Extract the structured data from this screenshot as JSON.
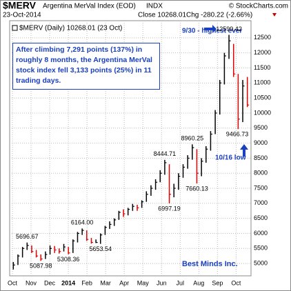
{
  "header": {
    "symbol": "$MERV",
    "name": "Argentina MerVal Index (EOD)",
    "exchange": "INDX",
    "date": "23-Oct-2014",
    "close": "Close 10268.01",
    "change": "Chg -280.22 (-2.66%)",
    "credit": "© StockCharts.com",
    "legend": "$MERV (Daily) 10268.01 (23 Oct)"
  },
  "chart_data": {
    "type": "ohlc",
    "categories": [
      "Oct",
      "Nov",
      "Dec",
      "2014",
      "Feb",
      "Mar",
      "Apr",
      "May",
      "Jun",
      "Jul",
      "Aug",
      "Sep",
      "Oct"
    ],
    "high": [
      5050,
      5300,
      5550,
      5696.67,
      5600,
      5450,
      5300,
      5400,
      5600,
      5580,
      5500,
      5650,
      5550,
      5800,
      6050,
      6164.0,
      6100,
      5850,
      5800,
      6000,
      6250,
      6400,
      6500,
      6750,
      6800,
      6850,
      6980,
      6950,
      7100,
      7400,
      7600,
      7800,
      8100,
      8444.71,
      8300,
      7650,
      8000,
      8300,
      8600,
      8960.25,
      8800,
      8500,
      8900,
      9400,
      10100,
      11100,
      12000,
      12599.42,
      12300,
      11300,
      11100,
      11200
    ],
    "low": [
      4800,
      4950,
      5200,
      5450,
      5350,
      5200,
      5087.98,
      5150,
      5300,
      5350,
      5330,
      5400,
      5308.36,
      5350,
      5700,
      5950,
      5750,
      5660,
      5680,
      5653.54,
      5950,
      6150,
      6250,
      6450,
      6550,
      6600,
      6750,
      6750,
      6850,
      7050,
      7250,
      7450,
      7700,
      7950,
      6997.19,
      7200,
      7450,
      7850,
      8150,
      8450,
      7660.13,
      7900,
      8350,
      8750,
      9300,
      9950,
      10950,
      11800,
      11200,
      9466.73,
      9700,
      10200
    ],
    "close": [
      4950,
      5250,
      5500,
      5600,
      5400,
      5250,
      5150,
      5300,
      5500,
      5450,
      5400,
      5550,
      5350,
      5750,
      6000,
      6100,
      5800,
      5700,
      5700,
      5950,
      6200,
      6300,
      6450,
      6700,
      6650,
      6800,
      6900,
      6850,
      7050,
      7300,
      7500,
      7700,
      8000,
      8350,
      7300,
      7500,
      7900,
      8200,
      8500,
      8850,
      8000,
      8400,
      8800,
      9300,
      10000,
      11000,
      11900,
      12400,
      11300,
      9800,
      10900,
      10268.01
    ],
    "up_color": "#000000",
    "down_color": "#e00000",
    "ylim": [
      4590,
      13070
    ],
    "yticks": [
      5000,
      5500,
      6000,
      6500,
      7000,
      7500,
      8000,
      8500,
      9000,
      9500,
      10000,
      10500,
      11000,
      11500,
      12000,
      12500
    ],
    "grid": true,
    "annotations": [
      {
        "value": 5696.67,
        "label": "5696.67"
      },
      {
        "value": 5087.98,
        "label": "5087.98"
      },
      {
        "value": 5308.36,
        "label": "5308.36"
      },
      {
        "value": 6164,
        "label": "6164.00"
      },
      {
        "value": 5653.54,
        "label": "5653.54"
      },
      {
        "value": 8444.71,
        "label": "8444.71"
      },
      {
        "value": 6997.19,
        "label": "6997.19"
      },
      {
        "value": 8960.25,
        "label": "8960.25"
      },
      {
        "value": 7660.13,
        "label": "7660.13"
      },
      {
        "value": 12599.42,
        "label": "12599.42"
      },
      {
        "value": 9466.73,
        "label": "9466.73"
      }
    ],
    "note": "After climbing 7,291 points (137%) in roughly 8 months, the Argentina MerVal stock index fell 3,133 points (25%) in 11 trading days.",
    "peak_note": "9/30 - highest ever",
    "low_note": "10/16 low",
    "watermark": "Best Minds Inc."
  }
}
